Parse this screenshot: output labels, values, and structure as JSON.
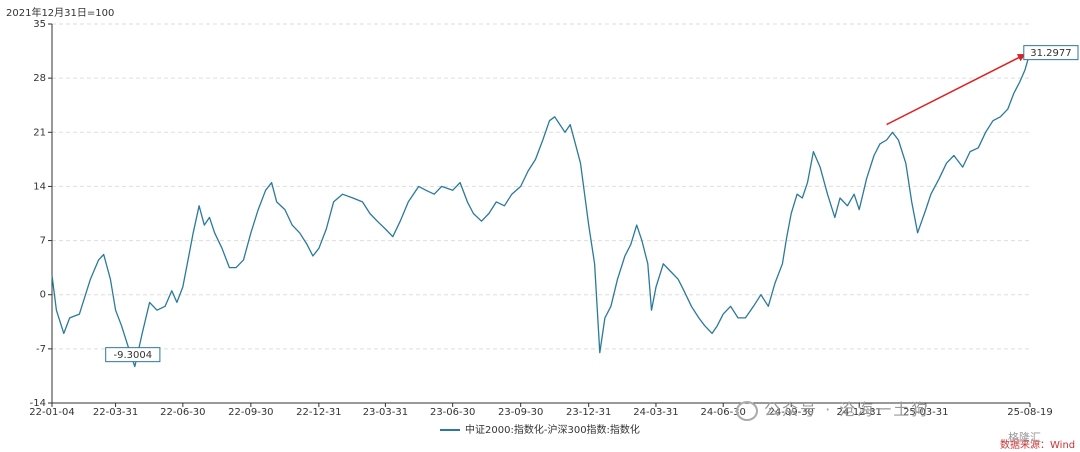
{
  "chart_data": {
    "type": "line",
    "base_note": "2021年12月31日=100",
    "series": [
      {
        "name": "中证2000:指数化-沪深300指数:指数化",
        "color": "#2a7a9b",
        "points": [
          [
            "22-01-04",
            2.5
          ],
          [
            "22-01-10",
            -2.0
          ],
          [
            "22-01-20",
            -5.0
          ],
          [
            "22-01-28",
            -3.0
          ],
          [
            "22-02-10",
            -2.5
          ],
          [
            "22-02-25",
            2.0
          ],
          [
            "22-03-08",
            4.5
          ],
          [
            "22-03-15",
            5.2
          ],
          [
            "22-03-24",
            2.0
          ],
          [
            "22-03-31",
            -2.0
          ],
          [
            "22-04-08",
            -4.0
          ],
          [
            "22-04-18",
            -7.0
          ],
          [
            "22-04-26",
            -9.3
          ],
          [
            "22-05-06",
            -5.0
          ],
          [
            "22-05-16",
            -1.0
          ],
          [
            "22-05-26",
            -2.0
          ],
          [
            "22-06-06",
            -1.5
          ],
          [
            "22-06-15",
            0.5
          ],
          [
            "22-06-22",
            -1.0
          ],
          [
            "22-06-30",
            1.0
          ],
          [
            "22-07-06",
            4.0
          ],
          [
            "22-07-14",
            8.0
          ],
          [
            "22-07-22",
            11.5
          ],
          [
            "22-07-29",
            9.0
          ],
          [
            "22-08-05",
            10.0
          ],
          [
            "22-08-12",
            8.0
          ],
          [
            "22-08-22",
            6.0
          ],
          [
            "22-09-01",
            3.5
          ],
          [
            "22-09-10",
            3.5
          ],
          [
            "22-09-20",
            4.5
          ],
          [
            "22-09-30",
            8.0
          ],
          [
            "22-10-10",
            11.0
          ],
          [
            "22-10-20",
            13.5
          ],
          [
            "22-10-28",
            14.5
          ],
          [
            "22-11-04",
            12.0
          ],
          [
            "22-11-15",
            11.0
          ],
          [
            "22-11-25",
            9.0
          ],
          [
            "22-12-05",
            8.0
          ],
          [
            "22-12-15",
            6.5
          ],
          [
            "22-12-23",
            5.0
          ],
          [
            "22-12-31",
            6.0
          ],
          [
            "23-01-10",
            8.5
          ],
          [
            "23-01-20",
            12.0
          ],
          [
            "23-02-01",
            13.0
          ],
          [
            "23-02-15",
            12.5
          ],
          [
            "23-02-28",
            12.0
          ],
          [
            "23-03-10",
            10.5
          ],
          [
            "23-03-20",
            9.5
          ],
          [
            "23-03-31",
            8.5
          ],
          [
            "23-04-10",
            7.5
          ],
          [
            "23-04-20",
            9.5
          ],
          [
            "23-05-01",
            12.0
          ],
          [
            "23-05-15",
            14.0
          ],
          [
            "23-05-25",
            13.5
          ],
          [
            "23-06-05",
            13.0
          ],
          [
            "23-06-15",
            14.0
          ],
          [
            "23-06-30",
            13.5
          ],
          [
            "23-07-10",
            14.5
          ],
          [
            "23-07-20",
            12.0
          ],
          [
            "23-07-28",
            10.5
          ],
          [
            "23-08-08",
            9.5
          ],
          [
            "23-08-18",
            10.5
          ],
          [
            "23-08-28",
            12.0
          ],
          [
            "23-09-08",
            11.5
          ],
          [
            "23-09-18",
            13.0
          ],
          [
            "23-09-30",
            14.0
          ],
          [
            "23-10-10",
            16.0
          ],
          [
            "23-10-20",
            17.5
          ],
          [
            "23-10-30",
            20.0
          ],
          [
            "23-11-08",
            22.5
          ],
          [
            "23-11-15",
            23.0
          ],
          [
            "23-11-22",
            22.0
          ],
          [
            "23-11-29",
            21.0
          ],
          [
            "23-12-06",
            22.0
          ],
          [
            "23-12-13",
            19.5
          ],
          [
            "23-12-20",
            17.0
          ],
          [
            "23-12-31",
            9.0
          ],
          [
            "24-01-08",
            4.0
          ],
          [
            "24-01-15",
            -7.5
          ],
          [
            "24-01-22",
            -3.0
          ],
          [
            "24-01-30",
            -1.5
          ],
          [
            "24-02-08",
            2.0
          ],
          [
            "24-02-18",
            5.0
          ],
          [
            "24-02-26",
            6.5
          ],
          [
            "24-03-05",
            9.0
          ],
          [
            "24-03-12",
            7.0
          ],
          [
            "24-03-20",
            4.0
          ],
          [
            "24-03-25",
            -2.0
          ],
          [
            "24-03-31",
            1.0
          ],
          [
            "24-04-10",
            4.0
          ],
          [
            "24-04-20",
            3.0
          ],
          [
            "24-04-30",
            2.0
          ],
          [
            "24-05-08",
            0.5
          ],
          [
            "24-05-18",
            -1.5
          ],
          [
            "24-05-28",
            -3.0
          ],
          [
            "24-06-05",
            -4.0
          ],
          [
            "24-06-15",
            -5.0
          ],
          [
            "24-06-22",
            -4.0
          ],
          [
            "24-06-30",
            -2.5
          ],
          [
            "24-07-10",
            -1.5
          ],
          [
            "24-07-20",
            -3.0
          ],
          [
            "24-07-30",
            -3.0
          ],
          [
            "24-08-10",
            -1.5
          ],
          [
            "24-08-20",
            0.0
          ],
          [
            "24-08-30",
            -1.5
          ],
          [
            "24-09-08",
            1.5
          ],
          [
            "24-09-18",
            4.0
          ],
          [
            "24-09-24",
            7.5
          ],
          [
            "24-09-30",
            10.5
          ],
          [
            "24-10-08",
            13.0
          ],
          [
            "24-10-15",
            12.5
          ],
          [
            "24-10-22",
            14.5
          ],
          [
            "24-10-30",
            18.5
          ],
          [
            "24-11-08",
            16.5
          ],
          [
            "24-11-18",
            13.0
          ],
          [
            "24-11-28",
            10.0
          ],
          [
            "24-12-05",
            12.5
          ],
          [
            "24-12-15",
            11.5
          ],
          [
            "24-12-24",
            13.0
          ],
          [
            "24-12-31",
            11.0
          ],
          [
            "25-01-10",
            15.0
          ],
          [
            "25-01-20",
            18.0
          ],
          [
            "25-01-28",
            19.5
          ],
          [
            "25-02-06",
            20.0
          ],
          [
            "25-02-14",
            21.0
          ],
          [
            "25-02-22",
            20.0
          ],
          [
            "25-03-04",
            17.0
          ],
          [
            "25-03-12",
            12.0
          ],
          [
            "25-03-20",
            8.0
          ],
          [
            "25-03-31",
            11.0
          ],
          [
            "25-04-07",
            13.0
          ],
          [
            "25-04-18",
            15.0
          ],
          [
            "25-04-28",
            17.0
          ],
          [
            "25-05-08",
            18.0
          ],
          [
            "25-05-20",
            16.5
          ],
          [
            "25-05-30",
            18.5
          ],
          [
            "25-06-10",
            19.0
          ],
          [
            "25-06-20",
            21.0
          ],
          [
            "25-06-30",
            22.5
          ],
          [
            "25-07-10",
            23.0
          ],
          [
            "25-07-20",
            24.0
          ],
          [
            "25-07-28",
            26.0
          ],
          [
            "25-08-05",
            27.5
          ],
          [
            "25-08-12",
            29.0
          ],
          [
            "25-08-19",
            31.2977
          ]
        ]
      }
    ],
    "x_ticks": [
      "22-01-04",
      "22-03-31",
      "22-06-30",
      "22-09-30",
      "22-12-31",
      "23-03-31",
      "23-06-30",
      "23-09-30",
      "23-12-31",
      "24-03-31",
      "24-06-30",
      "24-09-30",
      "24-12-31",
      "25-03-31",
      "25-08-19"
    ],
    "y_ticks": [
      35,
      28,
      21,
      14,
      7,
      0,
      -7,
      -14
    ],
    "ylim": [
      -14,
      35
    ],
    "grid": true,
    "annotations": [
      {
        "date": "22-04-26",
        "value": -9.3004,
        "label": "-9.3004"
      },
      {
        "date": "25-08-19",
        "value": 31.2977,
        "label": "31.2977"
      }
    ],
    "trend_arrow": {
      "from_date": "25-02-06",
      "from_value": 22.0,
      "to_date": "25-08-19",
      "to_value": 31.0,
      "color": "#e02020"
    },
    "legend_position": "bottom-center"
  },
  "legend_label": "中证2000:指数化-沪深300指数:指数化",
  "watermark": "公众号 · 沧海一土狗",
  "source": "数据来源：Wind",
  "brand": "格隆汇"
}
